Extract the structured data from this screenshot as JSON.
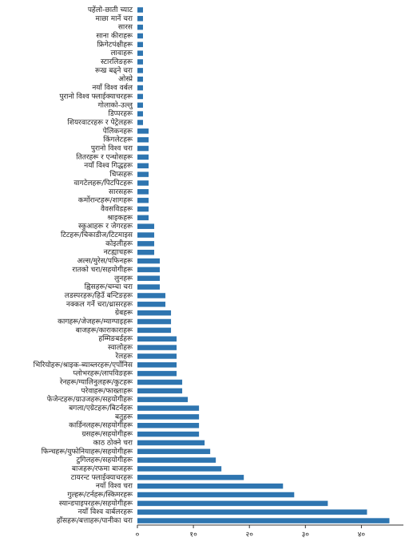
{
  "chart_data": {
    "type": "barh",
    "categories": [
      "पहेंलो-छाती च्याट",
      "माछा मार्ने चरा",
      "सारस",
      "साना कीराहरू",
      "फ्रिगेटपंक्षीहरू",
      "लावाहरू",
      "स्टारलिङहरू",
      "रूख बढ्ने चरा",
      "ओस्प्रे",
      "नयाँ विश्व वर्बल",
      "पुरानो विश्व फ्लाईक्याचरहरू",
      "गोलाको-उल्लु",
      "डिप्परहरू",
      "शियरवाटरहरू र पेट्रेलहरू",
      "पेलिकनहरू",
      "किंगलेटहरू",
      "पुरानो विश्व चरा",
      "तितरहरू र एन्थोसहरू",
      "नयाँ विश्व गिद्धहरू",
      "चिप्सहरू",
      "वागटेलहरू/पिटपिटहरू",
      "सारसहरू",
      "कर्मोरान्टहरू/शागहरू",
      "वैवसविडहरू",
      "श्राइकहरू",
      "स्कुआहरू र जेगरहरू",
      "टिटहरू/चिकाडीज/टिटमाइस",
      "कोइलीहरू",
      "नटह्याचहरू",
      "अल्स/मुरेस/पफिनहरू",
      "रातको चरा/सहयोगीहरू",
      "लुनहरू",
      "ह्विसहरू/चम्चा चरा",
      "लडस्परहरू/हिउँ बन्टिङहरू",
      "नक्कल गर्ने चरा/थ्रासरहरू",
      "ग्रेबहरू",
      "कागहरू/जेजहरू/म्याग्पाइहरू",
      "बाजहरू/काराकाराहरू",
      "हम्मिङबर्डहरू",
      "स्वालोहरू",
      "रेलहरू",
      "भिरियोहरू/श्राइक-ब्याब्लरहरू/एर्पोनिस",
      "प्लोभरहरू/लापविङहरू",
      "रेनहरू/ग्यालिनुलहरू/कुटहरू",
      "परेवाहरू/फाख्ताहरू",
      "फेजेन्टहरू/ग्राउजहरू/सहयोगीहरू",
      "बगला/एग्रेटहरू/बिटर्नहरू",
      "बतुहरू",
      "कार्डिनलहरू/सहयोगीहरू",
      "ग्रसहरू/सहयोगीहरू",
      "काठ ठोक्ने चरा",
      "फिन्चहरू/युफोनियाहरू/सहयोगीहरू",
      "टुगिलहरू/सहयोगीहरू",
      "बाजहरू/रफमा बाजहरू",
      "टायरन्ट फ्लाईक्याचरहरू",
      "नयाँ विश्व चरा",
      "गुल्हरू/टर्नहरू/स्किमरहरू",
      "स्यान्डपाइपरहरू/सहयोगीहरू",
      "नयाँ विश्व वार्बलरहरू",
      "हाँसहरू/बत्ताहरू/पानीका चरा"
    ],
    "values": [
      1,
      1,
      1,
      1,
      1,
      1,
      1,
      1,
      1,
      1,
      1,
      1,
      1,
      1,
      2,
      2,
      2,
      2,
      2,
      2,
      2,
      2,
      2,
      2,
      2,
      3,
      3,
      3,
      3,
      4,
      4,
      4,
      4,
      5,
      5,
      6,
      6,
      6,
      7,
      7,
      7,
      7,
      7,
      8,
      8,
      9,
      11,
      11,
      11,
      11,
      12,
      13,
      14,
      15,
      19,
      26,
      28,
      34,
      41,
      45
    ],
    "color": "#2e75b0",
    "xlim": [
      0,
      47.5
    ],
    "xticks": [
      {
        "value": 0,
        "label": "०"
      },
      {
        "value": 10,
        "label": "१०"
      },
      {
        "value": 20,
        "label": "२०"
      },
      {
        "value": 30,
        "label": "३०"
      },
      {
        "value": 40,
        "label": "४०"
      }
    ]
  }
}
